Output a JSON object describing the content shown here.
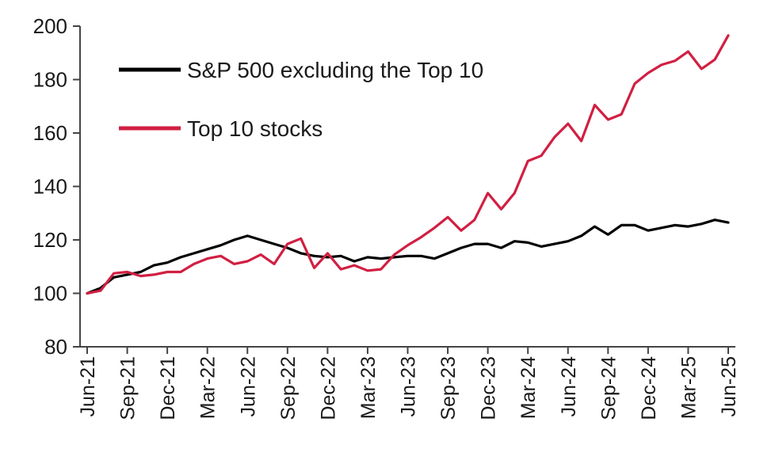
{
  "chart_data": {
    "type": "line",
    "title": "",
    "xlabel": "",
    "ylabel": "",
    "ylim": [
      80,
      200
    ],
    "yticks": [
      80,
      100,
      120,
      140,
      160,
      180,
      200
    ],
    "grid": false,
    "legend_position": "top-left",
    "x_tick_labels": [
      "Jun-21",
      "Sep-21",
      "Dec-21",
      "Mar-22",
      "Jun-22",
      "Sep-22",
      "Dec-22",
      "Mar-23",
      "Jun-23",
      "Sep-23",
      "Dec-23",
      "Mar-24",
      "Jun-24",
      "Sep-24",
      "Dec-24",
      "Mar-25",
      "Jun-25"
    ],
    "x": [
      "Jun-21",
      "Jul-21",
      "Aug-21",
      "Sep-21",
      "Oct-21",
      "Nov-21",
      "Dec-21",
      "Jan-22",
      "Feb-22",
      "Mar-22",
      "Apr-22",
      "May-22",
      "Jun-22",
      "Jul-22",
      "Aug-22",
      "Sep-22",
      "Oct-22",
      "Nov-22",
      "Dec-22",
      "Jan-23",
      "Feb-23",
      "Mar-23",
      "Apr-23",
      "May-23",
      "Jun-23",
      "Jul-23",
      "Aug-23",
      "Sep-23",
      "Oct-23",
      "Nov-23",
      "Dec-23",
      "Jan-24",
      "Feb-24",
      "Mar-24",
      "Apr-24",
      "May-24",
      "Jun-24",
      "Jul-24",
      "Aug-24",
      "Sep-24",
      "Oct-24",
      "Nov-24",
      "Dec-24",
      "Jan-25",
      "Feb-25",
      "Mar-25",
      "Apr-25",
      "May-25",
      "Jun-25"
    ],
    "series": [
      {
        "name": "S&P 500 excluding the Top 10",
        "color": "#000000",
        "values": [
          100,
          102,
          106,
          107,
          108,
          110.5,
          111.5,
          113.5,
          115,
          116.5,
          118,
          120,
          121.5,
          120,
          118.5,
          117,
          115,
          114,
          113.5,
          114,
          112,
          113.5,
          113,
          113.5,
          114,
          114,
          113,
          115,
          117,
          118.5,
          118.5,
          117,
          119.5,
          119,
          117.5,
          118.5,
          119.5,
          121.5,
          125,
          122,
          125.5,
          125.5,
          123.5,
          124.5,
          125.5,
          125,
          126,
          127.5,
          126.5
        ]
      },
      {
        "name": "Top 10 stocks",
        "color": "#d11f42",
        "values": [
          100,
          101,
          107.5,
          108,
          106.5,
          107,
          108,
          108,
          111,
          113,
          114,
          111,
          112,
          114.5,
          111,
          118.5,
          120.5,
          109.5,
          115,
          109,
          110.5,
          108.5,
          109,
          114.5,
          118,
          121,
          124.5,
          128.5,
          123.5,
          127.5,
          137.5,
          131.5,
          137.5,
          149.5,
          151.5,
          158.5,
          163.5,
          157,
          170.5,
          165,
          167,
          178.5,
          182.5,
          185.5,
          187,
          190.5,
          184,
          187.5,
          196.5
        ]
      }
    ]
  }
}
